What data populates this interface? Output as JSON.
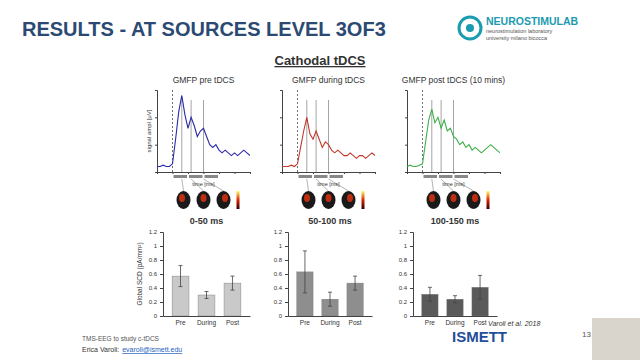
{
  "slide": {
    "title": "RESULTS - AT SOURCES LEVEL 3OF3",
    "logo": [
      "NEUROSTIMULAB",
      "neurostimulation laboratory",
      "university milano bicocca"
    ],
    "subtitle": "Cathodal tDCS",
    "citation": "Varoli et al. 2018",
    "footer": "TMS-EEG to study c-tDCS",
    "author": "Erica Varoli:",
    "email": "evaroli@ismett.edu",
    "institution": "ISMETT",
    "page": 13
  },
  "chart_data": [
    {
      "type": "line",
      "title": "GMFP pre tDCS",
      "x_label": "time [ms]",
      "y_label": "signal ampl [µV]",
      "x": [
        -50,
        -40,
        -30,
        -20,
        -10,
        0,
        10,
        20,
        30,
        40,
        50,
        60,
        70,
        80,
        90,
        100,
        110,
        120,
        130,
        140,
        150,
        160,
        170,
        180,
        190,
        200,
        210,
        220,
        230,
        240,
        250
      ],
      "series": [
        {
          "color": "#2a2aa8",
          "values": [
            0.2,
            0.2,
            0.25,
            0.2,
            0.2,
            0.3,
            1.2,
            2.2,
            2.8,
            2.1,
            1.6,
            2.0,
            1.7,
            1.3,
            1.5,
            1.6,
            1.3,
            1.0,
            0.9,
            1.0,
            0.8,
            0.7,
            0.8,
            0.7,
            0.6,
            0.7,
            0.6,
            0.7,
            0.8,
            0.7,
            0.6
          ]
        }
      ],
      "xlim": [
        -50,
        250
      ],
      "ylim": [
        0,
        3
      ],
      "xticks": [
        -50,
        0,
        50,
        100,
        150,
        200,
        250
      ],
      "yticks": [
        0,
        1,
        2,
        3
      ],
      "tick_labels": false,
      "stimulus": 0,
      "time_points": [
        30,
        60,
        100
      ],
      "windows": [
        [
          0,
          50
        ],
        [
          50,
          100
        ],
        [
          100,
          150
        ]
      ]
    },
    {
      "type": "line",
      "title": "GMFP during tDCS",
      "x_label": "time [ms]",
      "x": [
        -50,
        -40,
        -30,
        -20,
        -10,
        0,
        10,
        20,
        30,
        40,
        50,
        60,
        70,
        80,
        90,
        100,
        110,
        120,
        130,
        140,
        150,
        160,
        170,
        180,
        190,
        200,
        210,
        220,
        230,
        240,
        250
      ],
      "series": [
        {
          "color": "#c0392b",
          "values": [
            0.2,
            0.2,
            0.2,
            0.25,
            0.2,
            0.3,
            0.9,
            1.5,
            2.0,
            1.4,
            1.2,
            1.5,
            1.2,
            0.9,
            1.1,
            1.0,
            0.8,
            0.7,
            0.8,
            0.7,
            0.6,
            0.6,
            0.7,
            0.6,
            0.5,
            0.6,
            0.6,
            0.5,
            0.6,
            0.7,
            0.6
          ]
        }
      ],
      "xlim": [
        -50,
        250
      ],
      "ylim": [
        0,
        3
      ],
      "xticks": [
        -50,
        0,
        50,
        100,
        150,
        200,
        250
      ],
      "yticks": [
        0,
        1,
        2,
        3
      ],
      "tick_labels": false,
      "stimulus": 0,
      "time_points": [
        30,
        60,
        100
      ],
      "windows": [
        [
          0,
          50
        ],
        [
          50,
          100
        ],
        [
          100,
          150
        ]
      ]
    },
    {
      "type": "line",
      "title": "GMFP post tDCS (10 mins)",
      "x_label": "time [ms]",
      "x": [
        -50,
        -40,
        -30,
        -20,
        -10,
        0,
        10,
        20,
        30,
        40,
        50,
        60,
        70,
        80,
        90,
        100,
        110,
        120,
        130,
        140,
        150,
        160,
        170,
        180,
        190,
        200,
        210,
        220,
        230,
        240,
        250
      ],
      "series": [
        {
          "color": "#3db04a",
          "values": [
            0.2,
            0.25,
            0.2,
            0.2,
            0.25,
            0.3,
            1.1,
            1.9,
            2.3,
            1.8,
            2.0,
            1.6,
            1.9,
            1.5,
            1.6,
            1.3,
            1.2,
            1.0,
            1.1,
            0.9,
            1.0,
            0.8,
            0.9,
            0.8,
            0.7,
            0.8,
            0.9,
            1.0,
            0.9,
            0.8,
            0.7
          ]
        }
      ],
      "xlim": [
        -50,
        250
      ],
      "ylim": [
        0,
        3
      ],
      "xticks": [
        -50,
        0,
        50,
        100,
        150,
        200,
        250
      ],
      "yticks": [
        0,
        1,
        2,
        3
      ],
      "tick_labels": false,
      "stimulus": 0,
      "time_points": [
        30,
        60,
        100
      ],
      "windows": [
        [
          0,
          50
        ],
        [
          50,
          100
        ],
        [
          100,
          150
        ]
      ]
    },
    {
      "type": "bar",
      "title": "0-50 ms",
      "y_label": "Global SCD (pA/mm²)",
      "categories": [
        "Pre",
        "During",
        "Post"
      ],
      "values": [
        0.57,
        0.3,
        0.47
      ],
      "errors": [
        0.15,
        0.05,
        0.1
      ],
      "color": "#c9c9c9",
      "ylim": [
        0,
        1.2
      ],
      "yticks": [
        0,
        0.2,
        0.4,
        0.6,
        0.8,
        1,
        1.2
      ]
    },
    {
      "type": "bar",
      "title": "50-100 ms",
      "categories": [
        "Pre",
        "During",
        "Post"
      ],
      "values": [
        0.63,
        0.24,
        0.47
      ],
      "errors": [
        0.3,
        0.1,
        0.1
      ],
      "color": "#8e8e8e",
      "ylim": [
        0,
        1.2
      ],
      "yticks": [
        0,
        0.2,
        0.4,
        0.6,
        0.8,
        1,
        1.2
      ]
    },
    {
      "type": "bar",
      "title": "100-150 ms",
      "categories": [
        "Pre",
        "During",
        "Post"
      ],
      "values": [
        0.31,
        0.24,
        0.41
      ],
      "errors": [
        0.1,
        0.05,
        0.17
      ],
      "color": "#5a5a5a",
      "ylim": [
        0,
        1.2
      ],
      "yticks": [
        0,
        0.2,
        0.4,
        0.6,
        0.8,
        1,
        1.2
      ]
    }
  ]
}
